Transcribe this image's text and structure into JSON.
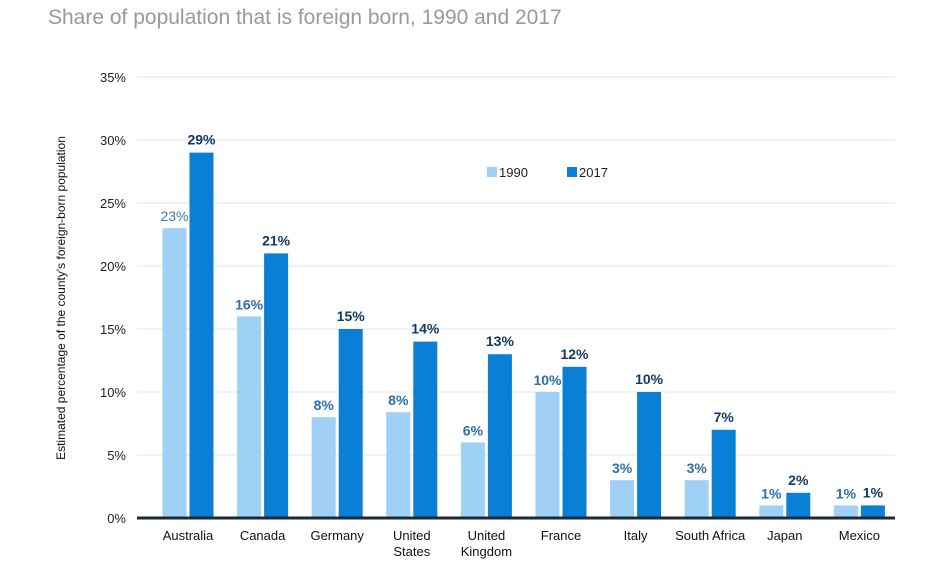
{
  "chart_data": {
    "type": "bar",
    "title": "Share of population that is foreign born, 1990 and 2017",
    "ylabel": "Estimated percentage of the county's foreign-born population",
    "xlabel": "",
    "ylim": [
      0,
      35
    ],
    "yticks": [
      "0%",
      "5%",
      "10%",
      "15%",
      "20%",
      "25%",
      "30%",
      "35%"
    ],
    "grid": true,
    "legend_position": "top-right",
    "categories": [
      [
        "Australia"
      ],
      [
        "Canada"
      ],
      [
        "Germany"
      ],
      [
        "United",
        "States"
      ],
      [
        "United",
        "Kingdom"
      ],
      [
        "France"
      ],
      [
        "Italy"
      ],
      [
        "South Africa"
      ],
      [
        "Japan"
      ],
      [
        "Mexico"
      ]
    ],
    "series": [
      {
        "name": "1990",
        "color": "#9fd0f5",
        "values": [
          23,
          16,
          8,
          8.4,
          6,
          10,
          3,
          3,
          1,
          1
        ],
        "labels": [
          "23%",
          "16%",
          "8%",
          "8%",
          "6%",
          "10%",
          "3%",
          "3%",
          "1%",
          "1%"
        ]
      },
      {
        "name": "2017",
        "color": "#0a7fd6",
        "values": [
          29,
          21,
          15,
          14,
          13,
          12,
          10,
          7,
          2,
          1
        ],
        "labels": [
          "29%",
          "21%",
          "15%",
          "14%",
          "13%",
          "12%",
          "10%",
          "7%",
          "2%",
          "1%"
        ]
      }
    ]
  }
}
